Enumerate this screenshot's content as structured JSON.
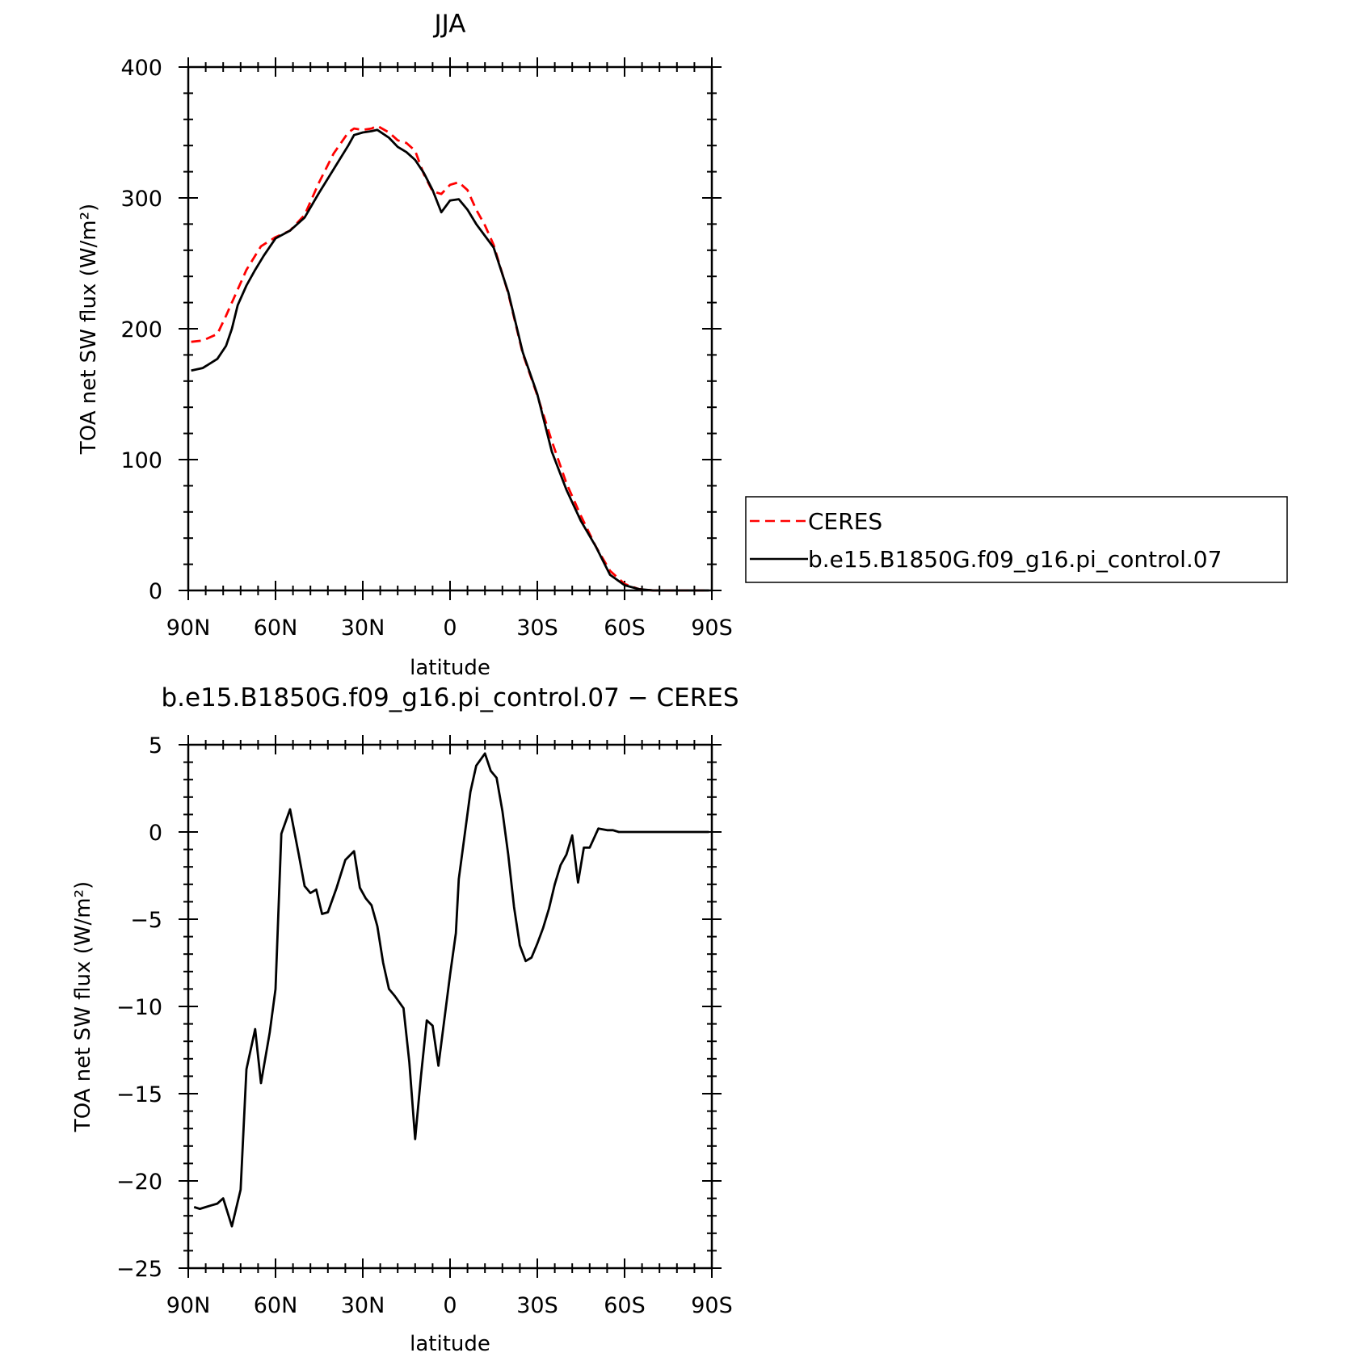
{
  "chart_data": [
    {
      "type": "line",
      "title": "JJA",
      "xlabel": "latitude",
      "ylabel": "TOA net SW flux (W/m²)",
      "xlim": [
        90,
        -90
      ],
      "ylim": [
        0,
        400
      ],
      "x_ticks": [
        90,
        60,
        30,
        0,
        -30,
        -60,
        -90
      ],
      "x_tick_labels": [
        "90N",
        "60N",
        "30N",
        "0",
        "30S",
        "60S",
        "90S"
      ],
      "y_ticks": [
        0,
        100,
        200,
        300,
        400
      ],
      "y_tick_labels": [
        "0",
        "100",
        "200",
        "300",
        "400"
      ],
      "grid": false,
      "legend": {
        "placement": "right",
        "entries": [
          "CERES",
          "b.e15.B1850G.f09_g16.pi_control.07"
        ]
      },
      "series": [
        {
          "name": "CERES",
          "color": "#ff0000",
          "dash": "dashed",
          "x": [
            89,
            85,
            80,
            77,
            73,
            70,
            65,
            60,
            55,
            50,
            45,
            40,
            35,
            33,
            30,
            27,
            25,
            21,
            18,
            15,
            12,
            9,
            6,
            3,
            0,
            -3,
            -6,
            -9,
            -12,
            -15,
            -20,
            -25,
            -30,
            -35,
            -40,
            -45,
            -50,
            -55,
            -60,
            -65,
            -70,
            -75,
            -80,
            -85,
            -89
          ],
          "y": [
            190,
            191,
            196,
            210,
            230,
            245,
            263,
            270,
            275,
            287,
            312,
            334,
            350,
            353,
            352,
            353,
            355,
            350,
            344,
            342,
            336,
            318,
            305,
            303,
            310,
            312,
            306,
            291,
            279,
            264,
            227,
            181,
            149,
            114,
            82,
            57,
            34,
            15,
            5,
            1,
            0,
            0,
            0,
            0,
            0
          ]
        },
        {
          "name": "b.e15.B1850G.f09_g16.pi_control.07",
          "color": "#000000",
          "dash": "solid",
          "x": [
            89,
            85,
            80,
            77,
            75,
            73,
            70,
            67,
            64,
            60,
            55,
            50,
            45,
            40,
            35,
            33,
            30,
            27,
            25,
            21,
            18,
            15,
            12,
            9,
            6,
            3,
            0,
            -3,
            -6,
            -9,
            -12,
            -15,
            -20,
            -25,
            -30,
            -35,
            -40,
            -45,
            -50,
            -55,
            -60,
            -65,
            -70,
            -75,
            -80,
            -85,
            -89
          ],
          "y": [
            168,
            170,
            177,
            187,
            200,
            218,
            233,
            245,
            256,
            269,
            275,
            285,
            304,
            322,
            340,
            348,
            350,
            351,
            352,
            346,
            339,
            335,
            329,
            319,
            306,
            289,
            298,
            299,
            291,
            280,
            271,
            262,
            228,
            182,
            150,
            106,
            77,
            53,
            34,
            12,
            4,
            1,
            0,
            0,
            0,
            0,
            0
          ]
        }
      ]
    },
    {
      "type": "line",
      "title": "b.e15.B1850G.f09_g16.pi_control.07 − CERES",
      "xlabel": "latitude",
      "ylabel": "TOA net SW flux (W/m²)",
      "xlim": [
        90,
        -90
      ],
      "ylim": [
        -25,
        5
      ],
      "x_ticks": [
        90,
        60,
        30,
        0,
        -30,
        -60,
        -90
      ],
      "x_tick_labels": [
        "90N",
        "60N",
        "30N",
        "0",
        "30S",
        "60S",
        "90S"
      ],
      "y_ticks": [
        -25,
        -20,
        -15,
        -10,
        -5,
        0,
        5
      ],
      "y_tick_labels": [
        "−25",
        "−20",
        "−15",
        "−10",
        "−5",
        "0",
        "5"
      ],
      "grid": false,
      "series": [
        {
          "color": "#000000",
          "dash": "solid",
          "x": [
            88,
            86,
            84,
            82,
            80,
            78,
            75,
            72,
            70,
            67,
            65,
            62,
            60,
            58,
            55,
            52,
            50,
            48,
            46,
            44,
            42,
            39,
            36,
            33,
            31,
            29,
            27,
            25,
            23,
            21,
            19,
            16,
            14,
            12,
            10,
            8,
            6,
            4,
            0,
            -2,
            -3,
            -5,
            -7,
            -9,
            -12,
            -14,
            -16,
            -18,
            -20,
            -22,
            -24,
            -26,
            -28,
            -30,
            -32,
            -34,
            -36,
            -38,
            -40,
            -42,
            -44,
            -46,
            -48,
            -51,
            -54,
            -56,
            -58,
            -60,
            -62,
            -64,
            -66,
            -68,
            -70,
            -72,
            -75,
            -78,
            -80,
            -85,
            -89
          ],
          "y": [
            -21.5,
            -21.6,
            -21.5,
            -21.4,
            -21.3,
            -21.0,
            -22.6,
            -20.5,
            -13.6,
            -11.3,
            -14.4,
            -11.5,
            -9.0,
            -0.1,
            1.3,
            -1.3,
            -3.1,
            -3.5,
            -3.3,
            -4.7,
            -4.6,
            -3.2,
            -1.6,
            -1.1,
            -3.2,
            -3.8,
            -4.2,
            -5.4,
            -7.5,
            -9.0,
            -9.4,
            -10.1,
            -13.2,
            -17.6,
            -14.0,
            -10.8,
            -11.1,
            -13.4,
            -8.2,
            -5.8,
            -2.7,
            -0.2,
            2.3,
            3.8,
            4.5,
            3.5,
            3.1,
            1.2,
            -1.3,
            -4.3,
            -6.5,
            -7.4,
            -7.2,
            -6.4,
            -5.5,
            -4.4,
            -3.0,
            -1.9,
            -1.3,
            -0.2,
            -2.9,
            -0.9,
            -0.9,
            0.2,
            0.1,
            0.1,
            0.0,
            0.0,
            0.0,
            0.0,
            0.0,
            0.0,
            0.0,
            0.0,
            0.0,
            0.0,
            0.0,
            0.0,
            0.0
          ]
        }
      ]
    }
  ]
}
